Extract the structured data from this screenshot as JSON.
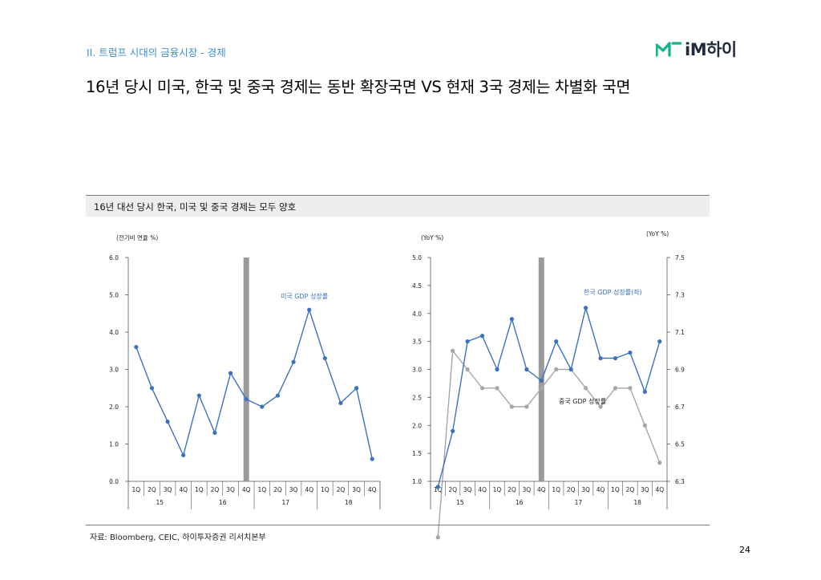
{
  "header": {
    "section_label": "II. 트럼프 시대의 금융시장 - 경제",
    "logo_text": "iM하이",
    "logo_color": "#16b28a"
  },
  "headline": "16년 당시 미국, 한국 및 중국 경제는 동반 확장국면 VS 현재 3국 경제는 차별화 국면",
  "subtitle": "16년 대선 당시 한국, 미국 및 중국 경제는 모두 양호",
  "source": "자료: Bloomberg, CEIC, 하이투자증권 리서치본부",
  "page_number": "24",
  "colors": {
    "series_blue": "#3b72c0",
    "series_gray": "#a6a6a6",
    "highlight_bar": "#9a9a9a"
  },
  "chart_data": [
    {
      "type": "line",
      "unit_label": "(전기비 연율 %)",
      "ylim": [
        0,
        6
      ],
      "yticks": [
        "0.0",
        "1.0",
        "2.0",
        "3.0",
        "4.0",
        "5.0",
        "6.0"
      ],
      "quarters": [
        "1Q",
        "2Q",
        "3Q",
        "4Q",
        "1Q",
        "2Q",
        "3Q",
        "4Q",
        "1Q",
        "2Q",
        "3Q",
        "4Q",
        "1Q",
        "2Q",
        "3Q",
        "4Q"
      ],
      "years": [
        "15",
        "16",
        "17",
        "18"
      ],
      "highlight_after_index": 7,
      "series": [
        {
          "name": "미국 GDP 성장률",
          "color": "#3b72c0",
          "values": [
            3.6,
            2.5,
            1.6,
            0.7,
            2.3,
            1.3,
            2.9,
            2.2,
            2.0,
            2.3,
            3.2,
            4.6,
            3.3,
            2.1,
            2.5,
            0.6
          ]
        }
      ]
    },
    {
      "type": "line",
      "unit_label_left": "(YoY %)",
      "unit_label_right": "(YoY %)",
      "ylim_left": [
        1,
        5
      ],
      "yticks_left": [
        "1.0",
        "1.5",
        "2.0",
        "2.5",
        "3.0",
        "3.5",
        "4.0",
        "4.5",
        "5.0"
      ],
      "ylim_right": [
        6.3,
        7.5
      ],
      "yticks_right": [
        "6.3",
        "6.5",
        "6.7",
        "6.9",
        "7.1",
        "7.3",
        "7.5"
      ],
      "quarters": [
        "1Q",
        "2Q",
        "3Q",
        "4Q",
        "1Q",
        "2Q",
        "3Q",
        "4Q",
        "1Q",
        "2Q",
        "3Q",
        "4Q",
        "1Q",
        "2Q",
        "3Q",
        "4Q"
      ],
      "years": [
        "15",
        "16",
        "17",
        "18"
      ],
      "highlight_after_index": 7,
      "series": [
        {
          "name": "한국 GDP 성장률(좌)",
          "axis": "left",
          "color": "#3b72c0",
          "values": [
            0.9,
            1.9,
            3.5,
            3.6,
            3.0,
            3.9,
            3.0,
            2.8,
            3.5,
            3.0,
            4.1,
            3.2,
            3.2,
            3.3,
            2.6,
            3.5
          ]
        },
        {
          "name": "중국 GDP 성장률",
          "axis": "right",
          "color": "#a6a6a6",
          "values": [
            6.0,
            7.0,
            6.9,
            6.8,
            6.8,
            6.7,
            6.7,
            6.8,
            6.9,
            6.9,
            6.8,
            6.7,
            6.8,
            6.8,
            6.6,
            6.4
          ]
        }
      ]
    }
  ]
}
